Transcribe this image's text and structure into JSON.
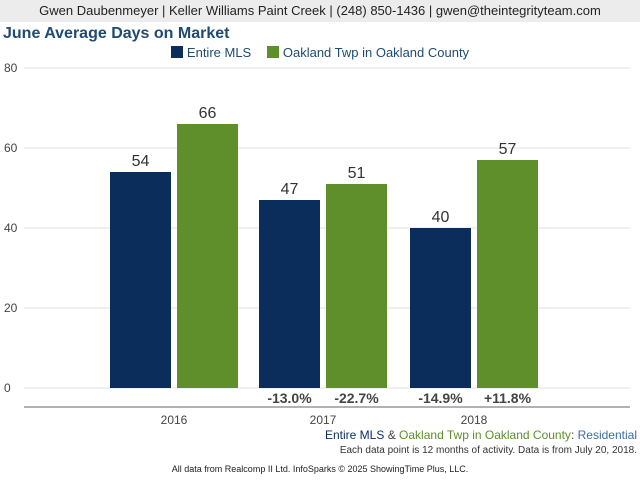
{
  "header": {
    "contact": "Gwen Daubenmeyer | Keller Williams Paint Creek | (248) 850-1436 | gwen@theintegrityteam.com"
  },
  "chart_data": {
    "type": "bar",
    "title": "June Average Days on Market",
    "categories": [
      "2016",
      "2017",
      "2018"
    ],
    "series": [
      {
        "name": "Entire MLS",
        "color": "#0b2d5c",
        "values": [
          54,
          47,
          40
        ],
        "changes": [
          "",
          "-13.0%",
          "-14.9%"
        ]
      },
      {
        "name": "Oakland Twp in Oakland County",
        "color": "#5f8f2b",
        "values": [
          66,
          51,
          57
        ],
        "changes": [
          "",
          "-22.7%",
          "+11.8%"
        ]
      }
    ],
    "ylim": [
      0,
      80
    ],
    "yticks": [
      0,
      20,
      40,
      60,
      80
    ],
    "grid": true,
    "legend": "top"
  },
  "subtitle": {
    "series1": "Entire MLS",
    "amp": "&",
    "series2": "Oakland Twp in Oakland County",
    "colon": ":",
    "category": "Residential",
    "colors": {
      "series1": "#0b2d5c",
      "series2": "#5f8f2b",
      "category": "#3a6ea5",
      "text": "#444444"
    }
  },
  "note": "Each data point is 12 months of activity. Data is from July 20, 2018.",
  "footer": "All data from Realcomp II Ltd. InfoSparks © 2025 ShowingTime Plus, LLC."
}
